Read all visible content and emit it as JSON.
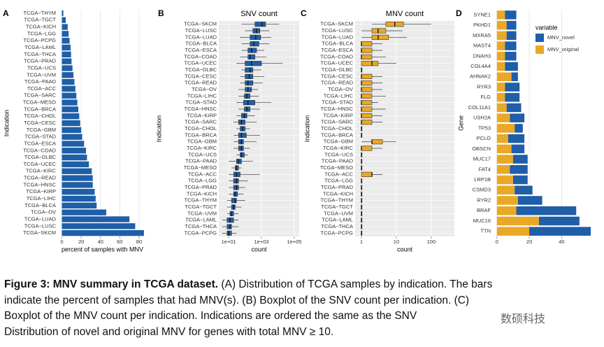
{
  "chart_data": [
    {
      "panel": "A",
      "type": "bar",
      "xlabel": "percent of samples with MNV",
      "ylabel": "Indication",
      "categories": [
        "TCGA−THYM",
        "TCGA−TGCT",
        "TCGA−KICH",
        "TCGA−LGG",
        "TCGA−PCPG",
        "TCGA−LAML",
        "TCGA−THCA",
        "TCGA−PRAD",
        "TCGA−UCS",
        "TCGA−UVM",
        "TCGA−PAAD",
        "TCGA−ACC",
        "TCGA−SARC",
        "TCGA−MESO",
        "TCGA−BRCA",
        "TCGA−CHOL",
        "TCGA−CESC",
        "TCGA−GBM",
        "TCGA−STAD",
        "TCGA−ESCA",
        "TCGA−COAD",
        "TCGA−DLBC",
        "TCGA−UCEC",
        "TCGA−KIRC",
        "TCGA−READ",
        "TCGA−HNSC",
        "TCGA−KIRP",
        "TCGA−LIHC",
        "TCGA−BLCA",
        "TCGA−OV",
        "TCGA−LUAD",
        "TCGA−LUSC",
        "TCGA−SKCM"
      ],
      "values": [
        1.5,
        4,
        6,
        7,
        8,
        9,
        9.5,
        10,
        11,
        12,
        13,
        14,
        15,
        16,
        17,
        18,
        19,
        20,
        21,
        23,
        25,
        26,
        28,
        31,
        32,
        32,
        34,
        35,
        36,
        46,
        70,
        76,
        85
      ],
      "color": "#1f5ea8",
      "xlim": [
        -4,
        88
      ],
      "xticks": [
        0,
        20,
        40,
        60,
        80
      ],
      "grid": true
    },
    {
      "panel": "B",
      "type": "box",
      "title": "SNV count",
      "xlabel": "count",
      "ylabel": "Indication",
      "categories": [
        "TCGA−SKCM",
        "TCGA−LUSC",
        "TCGA−LUAD",
        "TCGA−BLCA",
        "TCGA−ESCA",
        "TCGA−COAD",
        "TCGA−UCEC",
        "TCGA−DLBC",
        "TCGA−CESC",
        "TCGA−READ",
        "TCGA−OV",
        "TCGA−LIHC",
        "TCGA−STAD",
        "TCGA−HNSC",
        "TCGA−KIRP",
        "TCGA−SARC",
        "TCGA−CHOL",
        "TCGA−BRCA",
        "TCGA−GBM",
        "TCGA−KIRC",
        "TCGA−UCS",
        "TCGA−PAAD",
        "TCGA−MESO",
        "TCGA−ACC",
        "TCGA−LGG",
        "TCGA−PRAD",
        "TCGA−KICH",
        "TCGA−THYM",
        "TCGA−TGCT",
        "TCGA−UVM",
        "TCGA−LAML",
        "TCGA−THCA",
        "TCGA−PCPG"
      ],
      "low": [
        60,
        100,
        50,
        60,
        60,
        50,
        30,
        60,
        50,
        50,
        40,
        40,
        30,
        40,
        30,
        20,
        30,
        20,
        20,
        20,
        30,
        10,
        15,
        10,
        10,
        10,
        10,
        8,
        8,
        8,
        4,
        4,
        4
      ],
      "q1": [
        400,
        300,
        200,
        200,
        150,
        150,
        100,
        100,
        100,
        100,
        100,
        90,
        80,
        90,
        60,
        40,
        50,
        40,
        40,
        40,
        50,
        30,
        25,
        20,
        20,
        20,
        20,
        15,
        15,
        12,
        8,
        8,
        8
      ],
      "median": [
        1100,
        500,
        450,
        350,
        250,
        200,
        250,
        200,
        180,
        150,
        150,
        130,
        150,
        130,
        90,
        60,
        70,
        60,
        60,
        60,
        60,
        40,
        30,
        30,
        30,
        30,
        25,
        25,
        20,
        15,
        12,
        12,
        10
      ],
      "q3": [
        1800,
        800,
        900,
        700,
        500,
        400,
        1000,
        300,
        300,
        300,
        250,
        200,
        400,
        200,
        130,
        100,
        100,
        120,
        80,
        80,
        90,
        60,
        40,
        50,
        40,
        40,
        35,
        30,
        25,
        20,
        20,
        15,
        15
      ],
      "high": [
        12000,
        3000,
        4000,
        3000,
        1500,
        2000,
        20000,
        1000,
        1500,
        1200,
        600,
        700,
        4000,
        800,
        400,
        500,
        200,
        800,
        500,
        200,
        150,
        300,
        60,
        800,
        150,
        100,
        80,
        100,
        60,
        40,
        40,
        40,
        30
      ],
      "color": "#1f5ea8",
      "log_scale": true,
      "background": "#ebebeb",
      "grid": true,
      "xlim": [
        2.5,
        200000
      ],
      "xticks": [
        {
          "value": 10,
          "label": "1e+01"
        },
        {
          "value": 1000,
          "label": "1e+03"
        },
        {
          "value": 100000,
          "label": "1e+05"
        }
      ]
    },
    {
      "panel": "C",
      "type": "box",
      "title": "MNV count",
      "xlabel": "count",
      "ylabel": "Indication",
      "categories": [
        "TCGA−SKCM",
        "TCGA−LUSC",
        "TCGA−LUAD",
        "TCGA−BLCA",
        "TCGA−ESCA",
        "TCGA−COAD",
        "TCGA−UCEC",
        "TCGA−DLBC",
        "TCGA−CESC",
        "TCGA−READ",
        "TCGA−OV",
        "TCGA−LIHC",
        "TCGA−STAD",
        "TCGA−HNSC",
        "TCGA−KIRP",
        "TCGA−SARC",
        "TCGA−CHOL",
        "TCGA−BRCA",
        "TCGA−GBM",
        "TCGA−KIRC",
        "TCGA−UCS",
        "TCGA−PAAD",
        "TCGA−MESO",
        "TCGA−ACC",
        "TCGA−LGG",
        "TCGA−PRAD",
        "TCGA−KICH",
        "TCGA−THYM",
        "TCGA−TGCT",
        "TCGA−UVM",
        "TCGA−LAML",
        "TCGA−THCA",
        "TCGA−PCPG"
      ],
      "low": [
        2,
        1,
        1,
        1,
        1,
        1,
        1,
        1,
        1,
        1,
        1,
        1,
        1,
        1,
        1,
        1,
        1,
        1,
        1,
        1,
        1,
        1,
        1,
        1,
        1,
        1,
        1,
        1,
        1,
        1,
        1,
        1,
        1
      ],
      "q1": [
        5,
        2,
        2,
        1,
        1,
        1,
        1,
        1,
        1,
        1,
        1,
        1,
        1,
        1,
        1,
        1,
        1,
        1,
        2,
        1,
        1,
        1,
        1,
        1,
        1,
        1,
        1,
        1,
        1,
        1,
        1,
        1,
        1
      ],
      "median": [
        9,
        3,
        3,
        1,
        1,
        1,
        2,
        1,
        1,
        1,
        1,
        1,
        1,
        1,
        1,
        1,
        1,
        1,
        2,
        1,
        1,
        1,
        1,
        2,
        1,
        1,
        1,
        1,
        1,
        1,
        1,
        1,
        1
      ],
      "q3": [
        16,
        5,
        6,
        2,
        2,
        2,
        3,
        1,
        2,
        2,
        2,
        2,
        2,
        2,
        2,
        2,
        1,
        1,
        4,
        2,
        1,
        1,
        1,
        2,
        1,
        1,
        1,
        1,
        1,
        1,
        1,
        1,
        1
      ],
      "high": [
        100,
        15,
        20,
        4,
        4,
        5,
        10,
        1,
        4,
        4,
        4,
        5,
        3,
        5,
        4,
        4,
        1,
        1,
        10,
        4,
        1,
        1,
        1,
        4,
        1,
        1,
        1,
        1,
        1,
        1,
        1,
        1,
        1
      ],
      "color": "#e9a825",
      "log_scale": true,
      "background": "#ebebeb",
      "grid": true,
      "xlim": [
        0.66,
        460
      ],
      "xticks": [
        1,
        10,
        100
      ]
    },
    {
      "panel": "D",
      "type": "bar",
      "ylabel": "Gene",
      "legend_title": "variable",
      "categories": [
        "SYNE1",
        "PKHD1",
        "MXRA5",
        "MAST4",
        "DNAH3",
        "COL4A4",
        "AHNAK2",
        "RYR3",
        "FLG",
        "COL11A1",
        "USH2A",
        "TP53",
        "PCLO",
        "OBSCN",
        "MUC17",
        "FAT4",
        "LRP1B",
        "CSMD3",
        "RYR2",
        "BRAF",
        "MUC16",
        "TTN"
      ],
      "series": [
        {
          "name": "MNV_novel",
          "color": "#1f5ea8",
          "values": [
            7,
            6,
            6,
            7,
            7,
            8,
            4,
            9,
            9,
            9,
            9,
            5,
            10,
            8,
            9,
            11,
            9,
            11,
            15,
            37,
            25,
            38
          ]
        },
        {
          "name": "MNV_original",
          "color": "#e9a825",
          "values": [
            5,
            6,
            6,
            5,
            5,
            5,
            9,
            5,
            5,
            6,
            8,
            11,
            7,
            9,
            10,
            8,
            10,
            11,
            13,
            12,
            26,
            20
          ]
        }
      ],
      "xlim": [
        -2.5,
        61
      ],
      "xticks": [
        0,
        20,
        40
      ],
      "grid": true
    }
  ],
  "caption": {
    "lead": "Figure 3: MNV summary in TCGA dataset.",
    "lines": [
      "(A) Distribution of TCGA samples by indication. The bars",
      "indicate the percent of samples that had MNV(s). (B) Boxplot of the SNV count per indication. (C)",
      "Boxplot of the MNV count per indication. Indications are ordered the same as the SNV",
      "Distribution of novel and original MNV for genes with total MNV ≥ 10."
    ],
    "watermark": "数硕科技"
  }
}
